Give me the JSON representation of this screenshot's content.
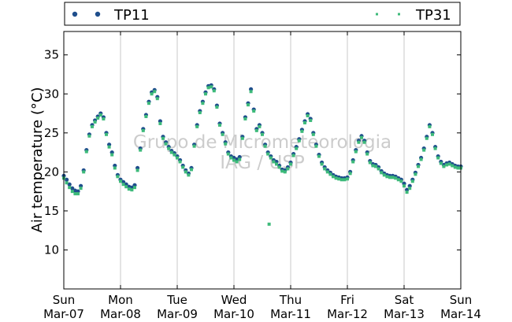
{
  "chart_data": {
    "type": "scatter",
    "title": "",
    "ylabel": "Air temperature (°C)",
    "xlabel": "",
    "ylim": [
      5,
      38
    ],
    "xlim": [
      0,
      7
    ],
    "grid": "vertical",
    "legend_placement": "top, above plot",
    "watermark": [
      "Grupo de Micrometeorologia",
      "IAG / USP"
    ],
    "yticks": [
      10,
      15,
      20,
      25,
      30,
      35
    ],
    "xticks": [
      {
        "x": 0,
        "day": "Sun",
        "date": "Mar-07"
      },
      {
        "x": 1,
        "day": "Mon",
        "date": "Mar-08"
      },
      {
        "x": 2,
        "day": "Tue",
        "date": "Mar-09"
      },
      {
        "x": 3,
        "day": "Wed",
        "date": "Mar-10"
      },
      {
        "x": 4,
        "day": "Thu",
        "date": "Mar-11"
      },
      {
        "x": 5,
        "day": "Fri",
        "date": "Mar-12"
      },
      {
        "x": 6,
        "day": "Sat",
        "date": "Mar-13"
      },
      {
        "x": 7,
        "day": "Sun",
        "date": "Mar-14"
      }
    ],
    "series": [
      {
        "name": "TP11",
        "color": "#1f4e8c",
        "marker": "circle",
        "points": [
          [
            0.0,
            19.5
          ],
          [
            0.05,
            19.0
          ],
          [
            0.1,
            18.4
          ],
          [
            0.15,
            17.9
          ],
          [
            0.2,
            17.6
          ],
          [
            0.25,
            17.5
          ],
          [
            0.3,
            18.2
          ],
          [
            0.35,
            20.2
          ],
          [
            0.4,
            22.8
          ],
          [
            0.45,
            24.8
          ],
          [
            0.5,
            26.0
          ],
          [
            0.55,
            26.6
          ],
          [
            0.6,
            27.1
          ],
          [
            0.65,
            27.5
          ],
          [
            0.7,
            27.0
          ],
          [
            0.75,
            25.0
          ],
          [
            0.8,
            23.5
          ],
          [
            0.85,
            22.5
          ],
          [
            0.9,
            20.8
          ],
          [
            0.95,
            19.6
          ],
          [
            1.0,
            19.0
          ],
          [
            1.05,
            18.7
          ],
          [
            1.1,
            18.4
          ],
          [
            1.15,
            18.1
          ],
          [
            1.2,
            18.0
          ],
          [
            1.25,
            18.3
          ],
          [
            1.3,
            20.5
          ],
          [
            1.35,
            23.0
          ],
          [
            1.4,
            25.5
          ],
          [
            1.45,
            27.3
          ],
          [
            1.5,
            29.0
          ],
          [
            1.55,
            30.2
          ],
          [
            1.6,
            30.5
          ],
          [
            1.65,
            29.6
          ],
          [
            1.7,
            26.5
          ],
          [
            1.75,
            24.5
          ],
          [
            1.8,
            23.8
          ],
          [
            1.85,
            23.2
          ],
          [
            1.9,
            22.7
          ],
          [
            1.95,
            22.4
          ],
          [
            2.0,
            22.0
          ],
          [
            2.05,
            21.5
          ],
          [
            2.1,
            20.8
          ],
          [
            2.15,
            20.2
          ],
          [
            2.2,
            19.8
          ],
          [
            2.25,
            20.5
          ],
          [
            2.3,
            23.5
          ],
          [
            2.35,
            26.0
          ],
          [
            2.4,
            27.8
          ],
          [
            2.45,
            29.0
          ],
          [
            2.5,
            30.2
          ],
          [
            2.55,
            31.0
          ],
          [
            2.6,
            31.1
          ],
          [
            2.65,
            30.6
          ],
          [
            2.7,
            28.5
          ],
          [
            2.75,
            26.2
          ],
          [
            2.8,
            25.0
          ],
          [
            2.85,
            23.8
          ],
          [
            2.9,
            22.5
          ],
          [
            2.95,
            22.0
          ],
          [
            3.0,
            21.8
          ],
          [
            3.05,
            21.6
          ],
          [
            3.1,
            21.9
          ],
          [
            3.15,
            24.5
          ],
          [
            3.2,
            27.0
          ],
          [
            3.25,
            28.8
          ],
          [
            3.3,
            30.6
          ],
          [
            3.35,
            28.0
          ],
          [
            3.4,
            25.5
          ],
          [
            3.45,
            26.0
          ],
          [
            3.5,
            25.0
          ],
          [
            3.55,
            23.5
          ],
          [
            3.6,
            22.5
          ],
          [
            3.65,
            22.0
          ],
          [
            3.7,
            21.5
          ],
          [
            3.75,
            21.3
          ],
          [
            3.8,
            20.8
          ],
          [
            3.85,
            20.3
          ],
          [
            3.9,
            20.2
          ],
          [
            3.95,
            20.6
          ],
          [
            4.0,
            21.2
          ],
          [
            4.05,
            22.3
          ],
          [
            4.1,
            23.2
          ],
          [
            4.15,
            24.2
          ],
          [
            4.2,
            25.4
          ],
          [
            4.25,
            26.5
          ],
          [
            4.3,
            27.4
          ],
          [
            4.35,
            26.8
          ],
          [
            4.4,
            25.0
          ],
          [
            4.45,
            23.5
          ],
          [
            4.5,
            22.2
          ],
          [
            4.55,
            21.2
          ],
          [
            4.6,
            20.6
          ],
          [
            4.65,
            20.2
          ],
          [
            4.7,
            19.9
          ],
          [
            4.75,
            19.6
          ],
          [
            4.8,
            19.4
          ],
          [
            4.85,
            19.3
          ],
          [
            4.9,
            19.2
          ],
          [
            4.95,
            19.2
          ],
          [
            5.0,
            19.3
          ],
          [
            5.05,
            20.0
          ],
          [
            5.1,
            21.5
          ],
          [
            5.15,
            22.8
          ],
          [
            5.2,
            24.0
          ],
          [
            5.25,
            24.6
          ],
          [
            5.3,
            24.0
          ],
          [
            5.35,
            22.5
          ],
          [
            5.4,
            21.4
          ],
          [
            5.45,
            21.0
          ],
          [
            5.5,
            20.9
          ],
          [
            5.55,
            20.6
          ],
          [
            5.6,
            20.1
          ],
          [
            5.65,
            19.8
          ],
          [
            5.7,
            19.6
          ],
          [
            5.75,
            19.5
          ],
          [
            5.8,
            19.5
          ],
          [
            5.85,
            19.4
          ],
          [
            5.9,
            19.2
          ],
          [
            5.95,
            19.0
          ],
          [
            6.0,
            18.5
          ],
          [
            6.05,
            17.7
          ],
          [
            6.1,
            18.2
          ],
          [
            6.15,
            19.0
          ],
          [
            6.2,
            19.9
          ],
          [
            6.25,
            20.9
          ],
          [
            6.3,
            21.8
          ],
          [
            6.35,
            23.0
          ],
          [
            6.4,
            24.5
          ],
          [
            6.45,
            26.0
          ],
          [
            6.5,
            25.0
          ],
          [
            6.55,
            23.2
          ],
          [
            6.6,
            22.0
          ],
          [
            6.65,
            21.3
          ],
          [
            6.7,
            20.9
          ],
          [
            6.75,
            21.1
          ],
          [
            6.8,
            21.2
          ],
          [
            6.85,
            21.0
          ],
          [
            6.9,
            20.8
          ],
          [
            6.95,
            20.7
          ],
          [
            7.0,
            20.7
          ]
        ]
      },
      {
        "name": "TP31",
        "color": "#3dba7a",
        "marker": "square",
        "points": [
          [
            0.0,
            19.2
          ],
          [
            0.05,
            18.6
          ],
          [
            0.1,
            18.0
          ],
          [
            0.15,
            17.5
          ],
          [
            0.2,
            17.2
          ],
          [
            0.25,
            17.2
          ],
          [
            0.3,
            17.9
          ],
          [
            0.35,
            20.0
          ],
          [
            0.4,
            22.6
          ],
          [
            0.45,
            24.6
          ],
          [
            0.5,
            25.8
          ],
          [
            0.55,
            26.4
          ],
          [
            0.6,
            26.9
          ],
          [
            0.65,
            27.3
          ],
          [
            0.7,
            26.8
          ],
          [
            0.75,
            24.8
          ],
          [
            0.8,
            23.2
          ],
          [
            0.85,
            22.2
          ],
          [
            0.9,
            20.5
          ],
          [
            0.95,
            19.4
          ],
          [
            1.0,
            18.8
          ],
          [
            1.05,
            18.4
          ],
          [
            1.1,
            18.1
          ],
          [
            1.15,
            17.8
          ],
          [
            1.2,
            17.7
          ],
          [
            1.25,
            18.0
          ],
          [
            1.3,
            20.2
          ],
          [
            1.35,
            22.8
          ],
          [
            1.4,
            25.3
          ],
          [
            1.45,
            27.1
          ],
          [
            1.5,
            28.8
          ],
          [
            1.55,
            30.0
          ],
          [
            1.6,
            30.3
          ],
          [
            1.65,
            29.4
          ],
          [
            1.7,
            26.2
          ],
          [
            1.75,
            24.3
          ],
          [
            1.8,
            23.6
          ],
          [
            1.85,
            23.0
          ],
          [
            1.9,
            22.5
          ],
          [
            1.95,
            22.2
          ],
          [
            2.0,
            21.8
          ],
          [
            2.05,
            21.3
          ],
          [
            2.1,
            20.6
          ],
          [
            2.15,
            20.0
          ],
          [
            2.2,
            19.6
          ],
          [
            2.25,
            20.3
          ],
          [
            2.3,
            23.3
          ],
          [
            2.35,
            25.8
          ],
          [
            2.4,
            27.6
          ],
          [
            2.45,
            28.8
          ],
          [
            2.5,
            30.0
          ],
          [
            2.55,
            30.8
          ],
          [
            2.6,
            30.9
          ],
          [
            2.65,
            30.4
          ],
          [
            2.7,
            28.3
          ],
          [
            2.75,
            26.0
          ],
          [
            2.8,
            24.8
          ],
          [
            2.85,
            23.6
          ],
          [
            2.9,
            22.3
          ],
          [
            2.95,
            21.8
          ],
          [
            3.0,
            21.5
          ],
          [
            3.05,
            21.3
          ],
          [
            3.1,
            21.6
          ],
          [
            3.15,
            24.3
          ],
          [
            3.2,
            26.8
          ],
          [
            3.25,
            28.6
          ],
          [
            3.3,
            30.3
          ],
          [
            3.35,
            27.8
          ],
          [
            3.4,
            25.3
          ],
          [
            3.45,
            25.8
          ],
          [
            3.5,
            24.8
          ],
          [
            3.55,
            23.3
          ],
          [
            3.6,
            22.3
          ],
          [
            3.65,
            21.8
          ],
          [
            3.7,
            21.3
          ],
          [
            3.75,
            21.0
          ],
          [
            3.8,
            20.6
          ],
          [
            3.85,
            20.1
          ],
          [
            3.9,
            20.0
          ],
          [
            3.95,
            20.4
          ],
          [
            4.0,
            21.0
          ],
          [
            4.05,
            22.1
          ],
          [
            4.1,
            23.0
          ],
          [
            4.15,
            24.0
          ],
          [
            4.2,
            25.2
          ],
          [
            4.25,
            26.3
          ],
          [
            4.3,
            27.2
          ],
          [
            4.35,
            26.6
          ],
          [
            4.4,
            24.8
          ],
          [
            4.45,
            23.3
          ],
          [
            4.5,
            22.0
          ],
          [
            4.55,
            21.0
          ],
          [
            4.6,
            20.4
          ],
          [
            4.65,
            20.0
          ],
          [
            4.7,
            19.7
          ],
          [
            4.75,
            19.4
          ],
          [
            4.8,
            19.2
          ],
          [
            4.85,
            19.1
          ],
          [
            4.9,
            19.0
          ],
          [
            4.95,
            19.0
          ],
          [
            5.0,
            19.1
          ],
          [
            5.05,
            19.8
          ],
          [
            5.1,
            21.3
          ],
          [
            5.15,
            22.6
          ],
          [
            5.2,
            23.8
          ],
          [
            5.25,
            24.4
          ],
          [
            5.3,
            23.8
          ],
          [
            5.35,
            22.3
          ],
          [
            5.4,
            21.2
          ],
          [
            5.45,
            20.8
          ],
          [
            5.5,
            20.7
          ],
          [
            5.55,
            20.4
          ],
          [
            5.6,
            19.9
          ],
          [
            5.65,
            19.6
          ],
          [
            5.7,
            19.4
          ],
          [
            5.75,
            19.3
          ],
          [
            5.8,
            19.3
          ],
          [
            5.85,
            19.2
          ],
          [
            5.9,
            19.0
          ],
          [
            5.95,
            18.8
          ],
          [
            6.0,
            18.2
          ],
          [
            6.05,
            17.4
          ],
          [
            6.1,
            17.9
          ],
          [
            6.15,
            18.8
          ],
          [
            6.2,
            19.7
          ],
          [
            6.25,
            20.7
          ],
          [
            6.3,
            21.6
          ],
          [
            6.35,
            22.8
          ],
          [
            6.4,
            24.3
          ],
          [
            6.45,
            25.8
          ],
          [
            6.5,
            24.8
          ],
          [
            6.55,
            23.0
          ],
          [
            6.6,
            21.8
          ],
          [
            6.65,
            21.1
          ],
          [
            6.7,
            20.7
          ],
          [
            6.75,
            20.9
          ],
          [
            6.8,
            21.0
          ],
          [
            6.85,
            20.8
          ],
          [
            6.9,
            20.6
          ],
          [
            6.95,
            20.5
          ],
          [
            7.0,
            20.5
          ],
          [
            3.62,
            13.3
          ]
        ]
      }
    ]
  }
}
